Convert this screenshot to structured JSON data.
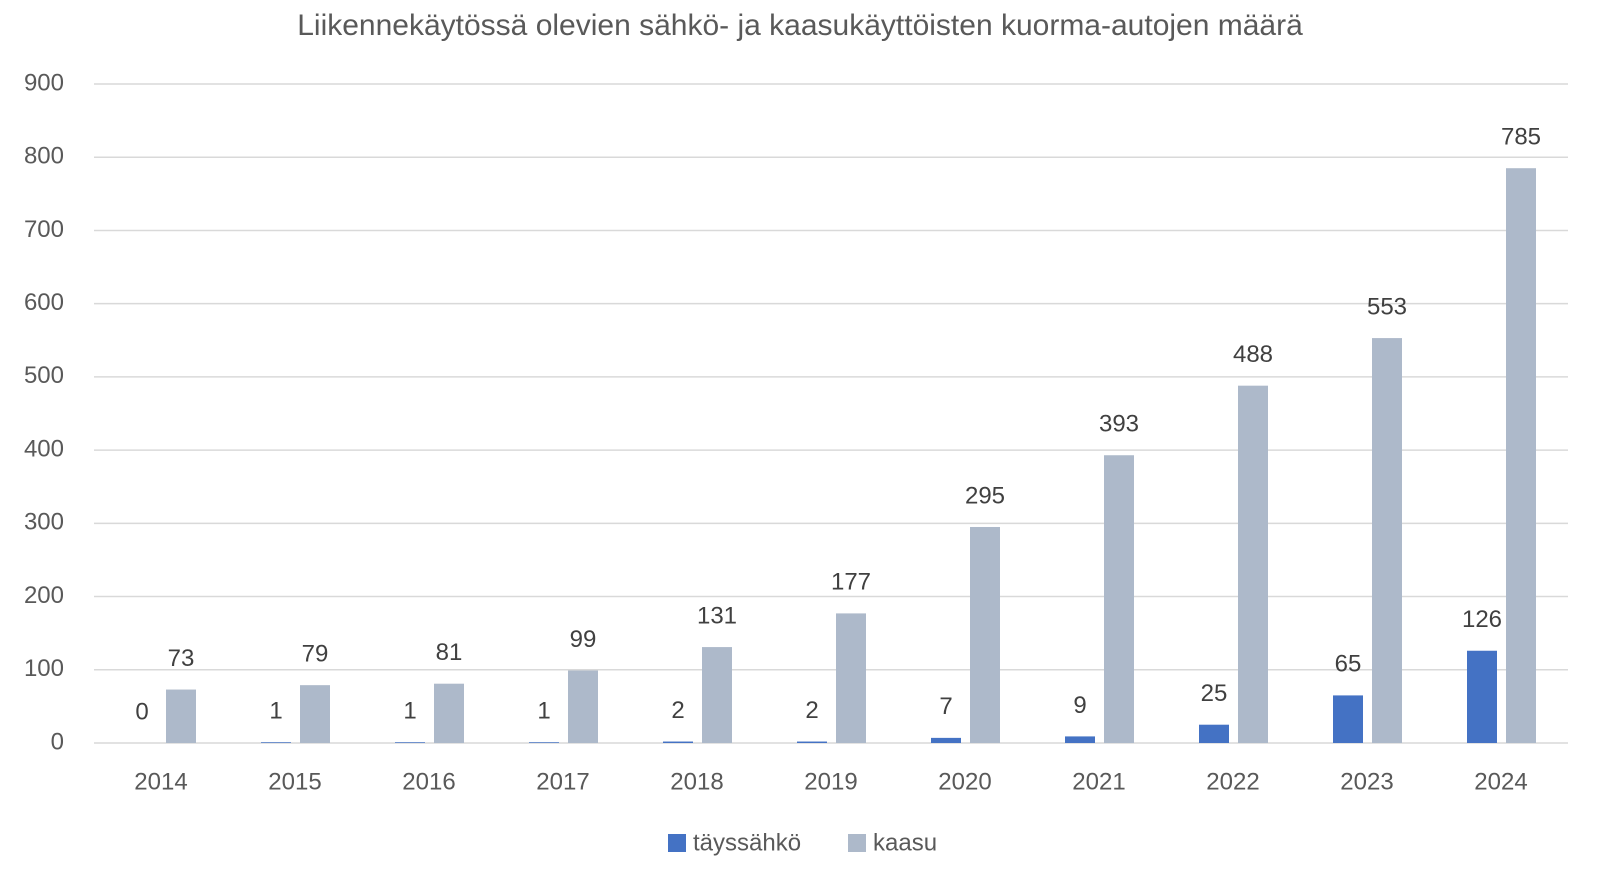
{
  "chart_data": {
    "type": "bar",
    "title": "Liikennekäytössä olevien sähkö- ja kaasukäyttöisten kuorma-autojen määrä",
    "categories": [
      "2014",
      "2015",
      "2016",
      "2017",
      "2018",
      "2019",
      "2020",
      "2021",
      "2022",
      "2023",
      "2024"
    ],
    "series": [
      {
        "name": "täyssähkö",
        "color": "#4472c4",
        "values": [
          0,
          1,
          1,
          1,
          2,
          2,
          7,
          9,
          25,
          65,
          126
        ]
      },
      {
        "name": "kaasu",
        "color": "#adb9ca",
        "values": [
          73,
          79,
          81,
          99,
          131,
          177,
          295,
          393,
          488,
          553,
          785
        ]
      }
    ],
    "ylim": [
      0,
      900
    ],
    "yticks": [
      0,
      100,
      200,
      300,
      400,
      500,
      600,
      700,
      800,
      900
    ],
    "grid": true,
    "legend": "bottom"
  }
}
